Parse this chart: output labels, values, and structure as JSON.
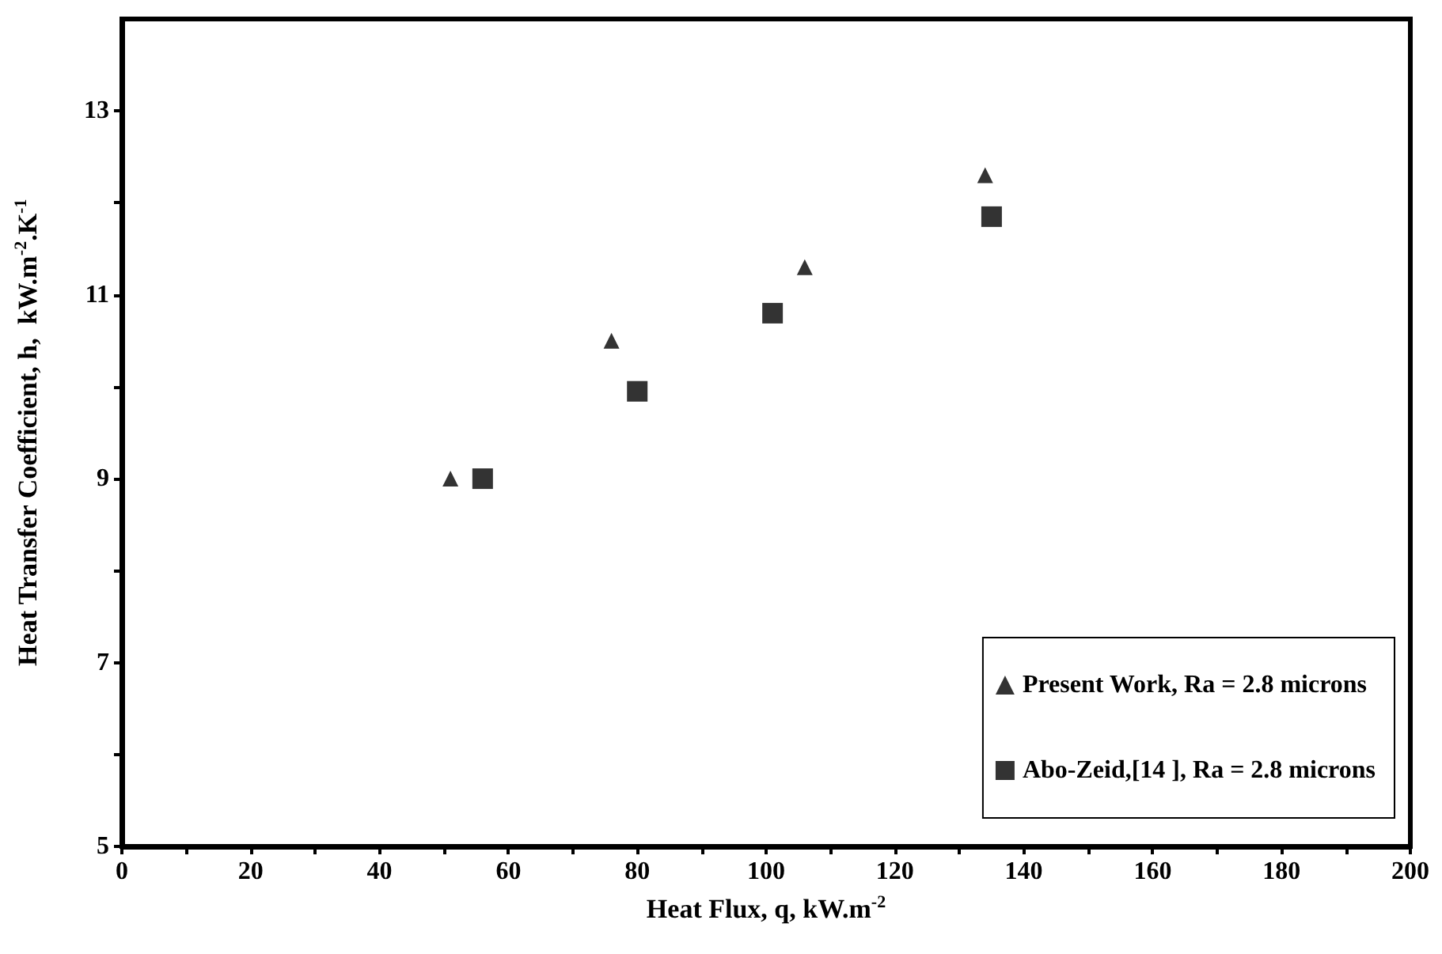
{
  "chart_data": {
    "type": "scatter",
    "xlabel": "Heat Flux, q, kW.m$^{-2}$",
    "ylabel": "Heat Transfer Coefficient, h,  kW.m$^{-2}$.K$^{-1}$",
    "series": [
      {
        "name": "Present Work, Ra = 2.8 microns",
        "color": "#000000",
        "marker": "triangle",
        "x": [
          51,
          76,
          106,
          134
        ],
        "values": [
          9.0,
          10.5,
          11.3,
          12.3
        ]
      },
      {
        "name": "Abo-Zeid,[14 ], Ra = 2.8 microns",
        "color": "#000000",
        "marker": "square",
        "x": [
          56,
          80,
          101,
          135
        ],
        "values": [
          9.0,
          9.95,
          10.8,
          11.85
        ]
      }
    ],
    "xlim": [
      0,
      200
    ],
    "xticks": [
      0,
      {
        "value": 10,
        "label": null
      },
      20,
      {
        "value": 30,
        "label": null
      },
      40,
      {
        "value": 50,
        "label": null
      },
      60,
      {
        "value": 70,
        "label": null
      },
      80,
      {
        "value": 90,
        "label": null
      },
      100,
      {
        "value": 110,
        "label": null
      },
      120,
      {
        "value": 130,
        "label": null
      },
      140,
      {
        "value": 150,
        "label": null
      },
      160,
      {
        "value": 170,
        "label": null
      },
      180,
      {
        "value": 190,
        "label": null
      },
      200
    ],
    "ylim": [
      5,
      14
    ],
    "yticks": [
      5,
      {
        "value": 6,
        "label": null
      },
      7,
      {
        "value": 8,
        "label": null
      },
      9,
      {
        "value": 10,
        "label": null
      },
      11,
      {
        "value": 12,
        "label": null
      },
      13
    ],
    "grid": false,
    "legend": "bottom right"
  }
}
